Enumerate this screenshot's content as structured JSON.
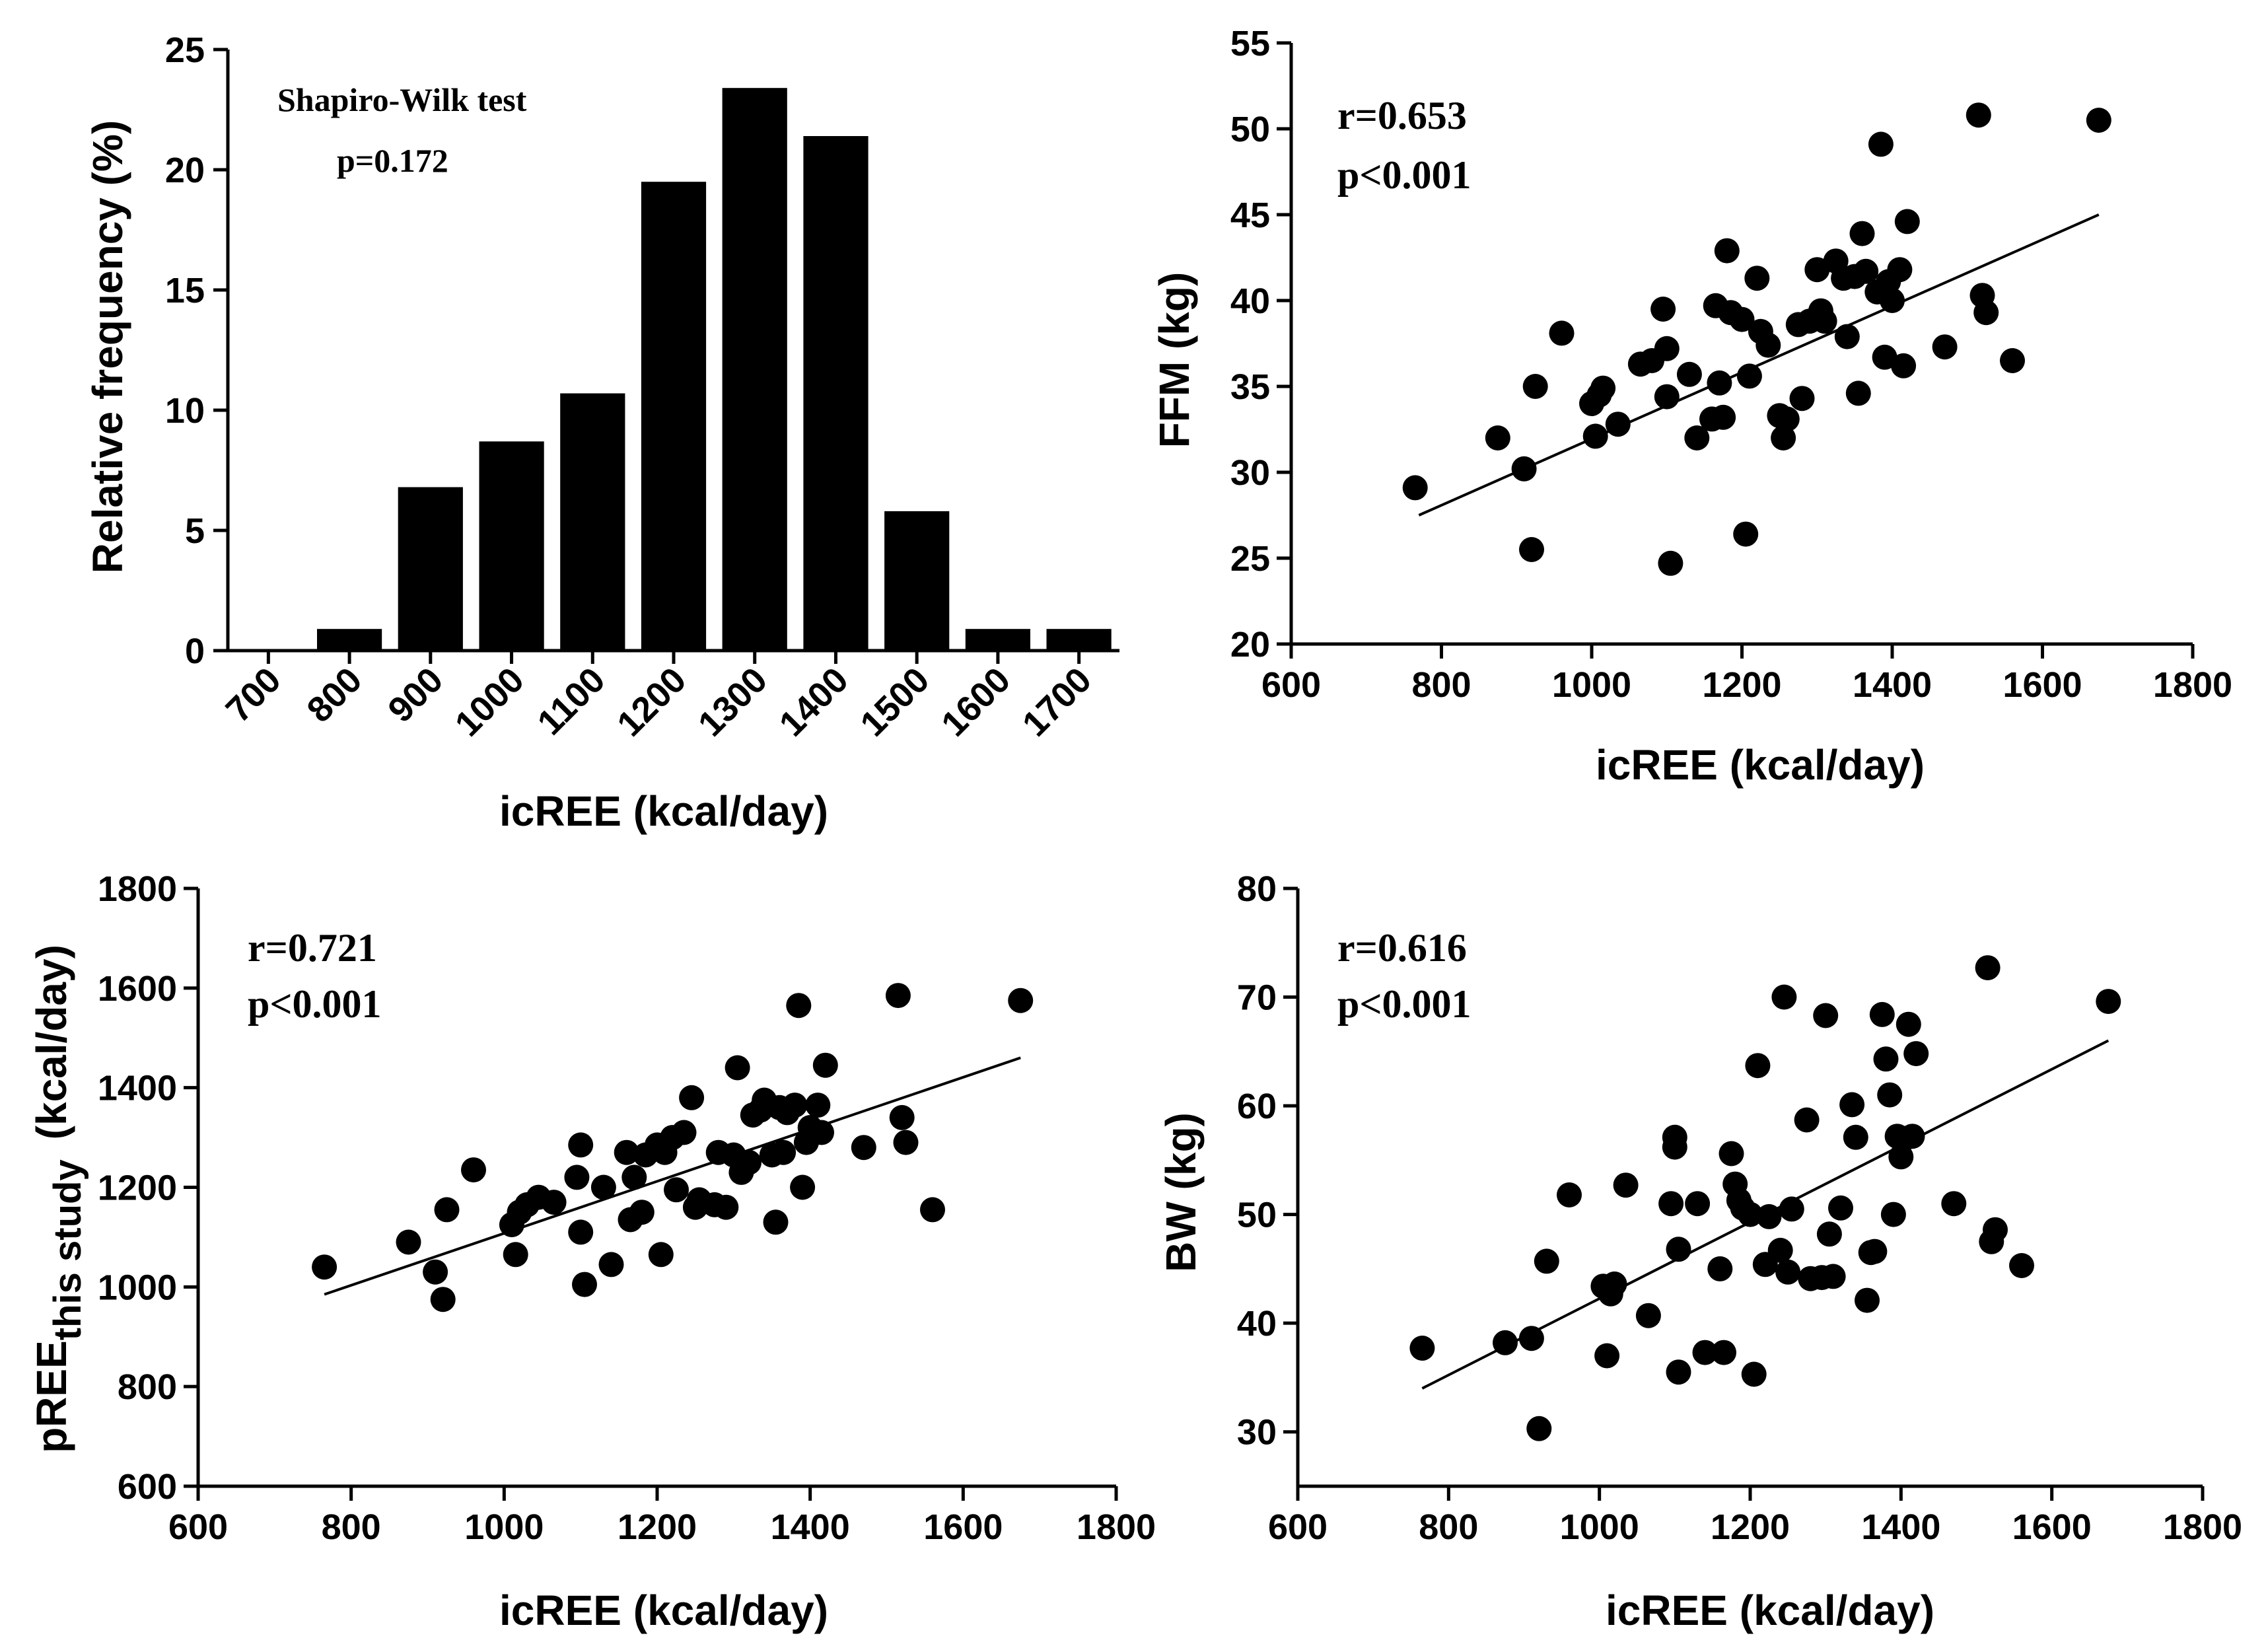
{
  "chart_data": [
    {
      "type": "bar",
      "categories": [
        "700",
        "800",
        "900",
        "1000",
        "1100",
        "1200",
        "1300",
        "1400",
        "1500",
        "1600",
        "1700"
      ],
      "values": [
        0,
        0.9,
        6.8,
        8.7,
        10.7,
        19.5,
        23.4,
        21.4,
        5.8,
        0.9,
        0.9
      ],
      "ylabel": "Relative frequency (%)",
      "xlabel": "icREE (kcal/day)",
      "ylim": [
        0,
        25
      ],
      "yticks": [
        0,
        5,
        10,
        15,
        20,
        25
      ],
      "annotations": [
        "Shapiro-Wilk test",
        "p=0.172"
      ]
    },
    {
      "type": "scatter",
      "xlabel": "icREE (kcal/day)",
      "ylabel": "FFM (kg)",
      "xlim": [
        600,
        1800
      ],
      "ylim": [
        20,
        55
      ],
      "xticks": [
        600,
        800,
        1000,
        1200,
        1400,
        1600,
        1800
      ],
      "yticks": [
        20,
        25,
        30,
        35,
        40,
        45,
        50,
        55
      ],
      "annotations": [
        "r=0.653",
        "p<0.001"
      ],
      "fit": [
        [
          770,
          27.5
        ],
        [
          1675,
          45.0
        ]
      ],
      "points": [
        [
          765,
          29.1
        ],
        [
          875,
          32
        ],
        [
          910,
          30.2
        ],
        [
          920,
          25.5
        ],
        [
          925,
          35
        ],
        [
          960,
          38.1
        ],
        [
          1000,
          34
        ],
        [
          1005,
          32.1
        ],
        [
          1010,
          34.5
        ],
        [
          1015,
          34.9
        ],
        [
          1035,
          32.8
        ],
        [
          1065,
          36.3
        ],
        [
          1080,
          36.5
        ],
        [
          1095,
          39.5
        ],
        [
          1100,
          37.2
        ],
        [
          1100,
          34.4
        ],
        [
          1105,
          24.7
        ],
        [
          1130,
          35.7
        ],
        [
          1140,
          32
        ],
        [
          1160,
          33.1
        ],
        [
          1165,
          39.7
        ],
        [
          1170,
          35.2
        ],
        [
          1175,
          33.2
        ],
        [
          1180,
          42.9
        ],
        [
          1185,
          39.3
        ],
        [
          1200,
          38.9
        ],
        [
          1205,
          26.4
        ],
        [
          1210,
          35.6
        ],
        [
          1220,
          41.3
        ],
        [
          1225,
          38.2
        ],
        [
          1235,
          37.4
        ],
        [
          1250,
          33.3
        ],
        [
          1255,
          32
        ],
        [
          1260,
          33.1
        ],
        [
          1275,
          38.6
        ],
        [
          1280,
          34.3
        ],
        [
          1290,
          38.8
        ],
        [
          1300,
          41.8
        ],
        [
          1305,
          39.4
        ],
        [
          1310,
          38.8
        ],
        [
          1325,
          42.3
        ],
        [
          1335,
          41.3
        ],
        [
          1340,
          37.9
        ],
        [
          1350,
          41.4
        ],
        [
          1355,
          34.6
        ],
        [
          1360,
          43.9
        ],
        [
          1365,
          41.7
        ],
        [
          1380,
          40.5
        ],
        [
          1385,
          49.1
        ],
        [
          1390,
          36.7
        ],
        [
          1395,
          41.1
        ],
        [
          1400,
          40
        ],
        [
          1410,
          41.8
        ],
        [
          1415,
          36.2
        ],
        [
          1420,
          44.6
        ],
        [
          1470,
          37.3
        ],
        [
          1515,
          50.8
        ],
        [
          1520,
          40.3
        ],
        [
          1525,
          39.3
        ],
        [
          1560,
          36.5
        ],
        [
          1675,
          50.5
        ]
      ]
    },
    {
      "type": "scatter",
      "xlabel": "icREE (kcal/day)",
      "ylabel_main": "pREE",
      "ylabel_sub": "this study",
      "ylabel_unit": "(kcal/day)",
      "xlim": [
        600,
        1800
      ],
      "ylim": [
        600,
        1800
      ],
      "xticks": [
        600,
        800,
        1000,
        1200,
        1400,
        1600,
        1800
      ],
      "yticks": [
        600,
        800,
        1000,
        1200,
        1400,
        1600,
        1800
      ],
      "annotations": [
        "r=0.721",
        "p<0.001"
      ],
      "fit": [
        [
          765,
          985
        ],
        [
          1675,
          1460
        ]
      ],
      "points": [
        [
          765,
          1040
        ],
        [
          875,
          1090
        ],
        [
          910,
          1030
        ],
        [
          920,
          975
        ],
        [
          925,
          1155
        ],
        [
          960,
          1235
        ],
        [
          1010,
          1125
        ],
        [
          1015,
          1065
        ],
        [
          1020,
          1150
        ],
        [
          1030,
          1165
        ],
        [
          1045,
          1180
        ],
        [
          1065,
          1170
        ],
        [
          1095,
          1220
        ],
        [
          1100,
          1285
        ],
        [
          1100,
          1110
        ],
        [
          1105,
          1005
        ],
        [
          1130,
          1200
        ],
        [
          1140,
          1045
        ],
        [
          1160,
          1270
        ],
        [
          1165,
          1135
        ],
        [
          1170,
          1220
        ],
        [
          1180,
          1150
        ],
        [
          1185,
          1265
        ],
        [
          1200,
          1285
        ],
        [
          1205,
          1065
        ],
        [
          1210,
          1270
        ],
        [
          1220,
          1300
        ],
        [
          1225,
          1195
        ],
        [
          1235,
          1310
        ],
        [
          1245,
          1380
        ],
        [
          1250,
          1160
        ],
        [
          1255,
          1175
        ],
        [
          1275,
          1165
        ],
        [
          1280,
          1270
        ],
        [
          1290,
          1160
        ],
        [
          1300,
          1265
        ],
        [
          1305,
          1440
        ],
        [
          1310,
          1230
        ],
        [
          1320,
          1250
        ],
        [
          1325,
          1345
        ],
        [
          1335,
          1355
        ],
        [
          1340,
          1375
        ],
        [
          1350,
          1265
        ],
        [
          1355,
          1130
        ],
        [
          1360,
          1360
        ],
        [
          1365,
          1270
        ],
        [
          1370,
          1350
        ],
        [
          1380,
          1365
        ],
        [
          1385,
          1565
        ],
        [
          1390,
          1200
        ],
        [
          1395,
          1290
        ],
        [
          1400,
          1320
        ],
        [
          1410,
          1365
        ],
        [
          1415,
          1310
        ],
        [
          1420,
          1445
        ],
        [
          1470,
          1280
        ],
        [
          1515,
          1585
        ],
        [
          1520,
          1340
        ],
        [
          1525,
          1290
        ],
        [
          1560,
          1155
        ],
        [
          1675,
          1575
        ]
      ]
    },
    {
      "type": "scatter",
      "xlabel": "icREE (kcal/day)",
      "ylabel": "BW (kg)",
      "xlim": [
        600,
        1800
      ],
      "ylim": [
        25,
        80
      ],
      "xticks": [
        600,
        800,
        1000,
        1200,
        1400,
        1600,
        1800
      ],
      "yticks": [
        30,
        40,
        50,
        60,
        70,
        80
      ],
      "annotations": [
        "r=0.616",
        "p<0.001"
      ],
      "fit": [
        [
          765,
          34.0
        ],
        [
          1675,
          66.0
        ]
      ],
      "points": [
        [
          765,
          37.7
        ],
        [
          875,
          38.2
        ],
        [
          910,
          38.6
        ],
        [
          920,
          30.3
        ],
        [
          930,
          45.7
        ],
        [
          960,
          51.8
        ],
        [
          1005,
          43.4
        ],
        [
          1010,
          37
        ],
        [
          1015,
          42.7
        ],
        [
          1020,
          43.6
        ],
        [
          1035,
          52.7
        ],
        [
          1065,
          40.7
        ],
        [
          1095,
          51
        ],
        [
          1100,
          57.1
        ],
        [
          1100,
          56.2
        ],
        [
          1105,
          46.8
        ],
        [
          1105,
          35.5
        ],
        [
          1130,
          51
        ],
        [
          1140,
          37.3
        ],
        [
          1160,
          45
        ],
        [
          1165,
          37.3
        ],
        [
          1175,
          55.6
        ],
        [
          1180,
          52.8
        ],
        [
          1185,
          51.3
        ],
        [
          1190,
          50.6
        ],
        [
          1200,
          50
        ],
        [
          1205,
          35.3
        ],
        [
          1210,
          63.7
        ],
        [
          1220,
          45.4
        ],
        [
          1225,
          49.8
        ],
        [
          1240,
          46.7
        ],
        [
          1245,
          70
        ],
        [
          1250,
          44.7
        ],
        [
          1255,
          50.5
        ],
        [
          1275,
          58.7
        ],
        [
          1280,
          44.1
        ],
        [
          1295,
          44.2
        ],
        [
          1300,
          68.3
        ],
        [
          1305,
          48.2
        ],
        [
          1310,
          44.3
        ],
        [
          1320,
          50.6
        ],
        [
          1335,
          60.1
        ],
        [
          1340,
          57.1
        ],
        [
          1355,
          42.1
        ],
        [
          1360,
          46.5
        ],
        [
          1365,
          46.6
        ],
        [
          1375,
          68.4
        ],
        [
          1380,
          64.3
        ],
        [
          1385,
          61
        ],
        [
          1390,
          50
        ],
        [
          1395,
          57.2
        ],
        [
          1400,
          55.3
        ],
        [
          1405,
          57
        ],
        [
          1410,
          67.5
        ],
        [
          1415,
          57.2
        ],
        [
          1420,
          64.8
        ],
        [
          1470,
          51
        ],
        [
          1515,
          72.7
        ],
        [
          1520,
          47.5
        ],
        [
          1525,
          48.6
        ],
        [
          1560,
          45.3
        ],
        [
          1675,
          69.6
        ]
      ]
    }
  ]
}
